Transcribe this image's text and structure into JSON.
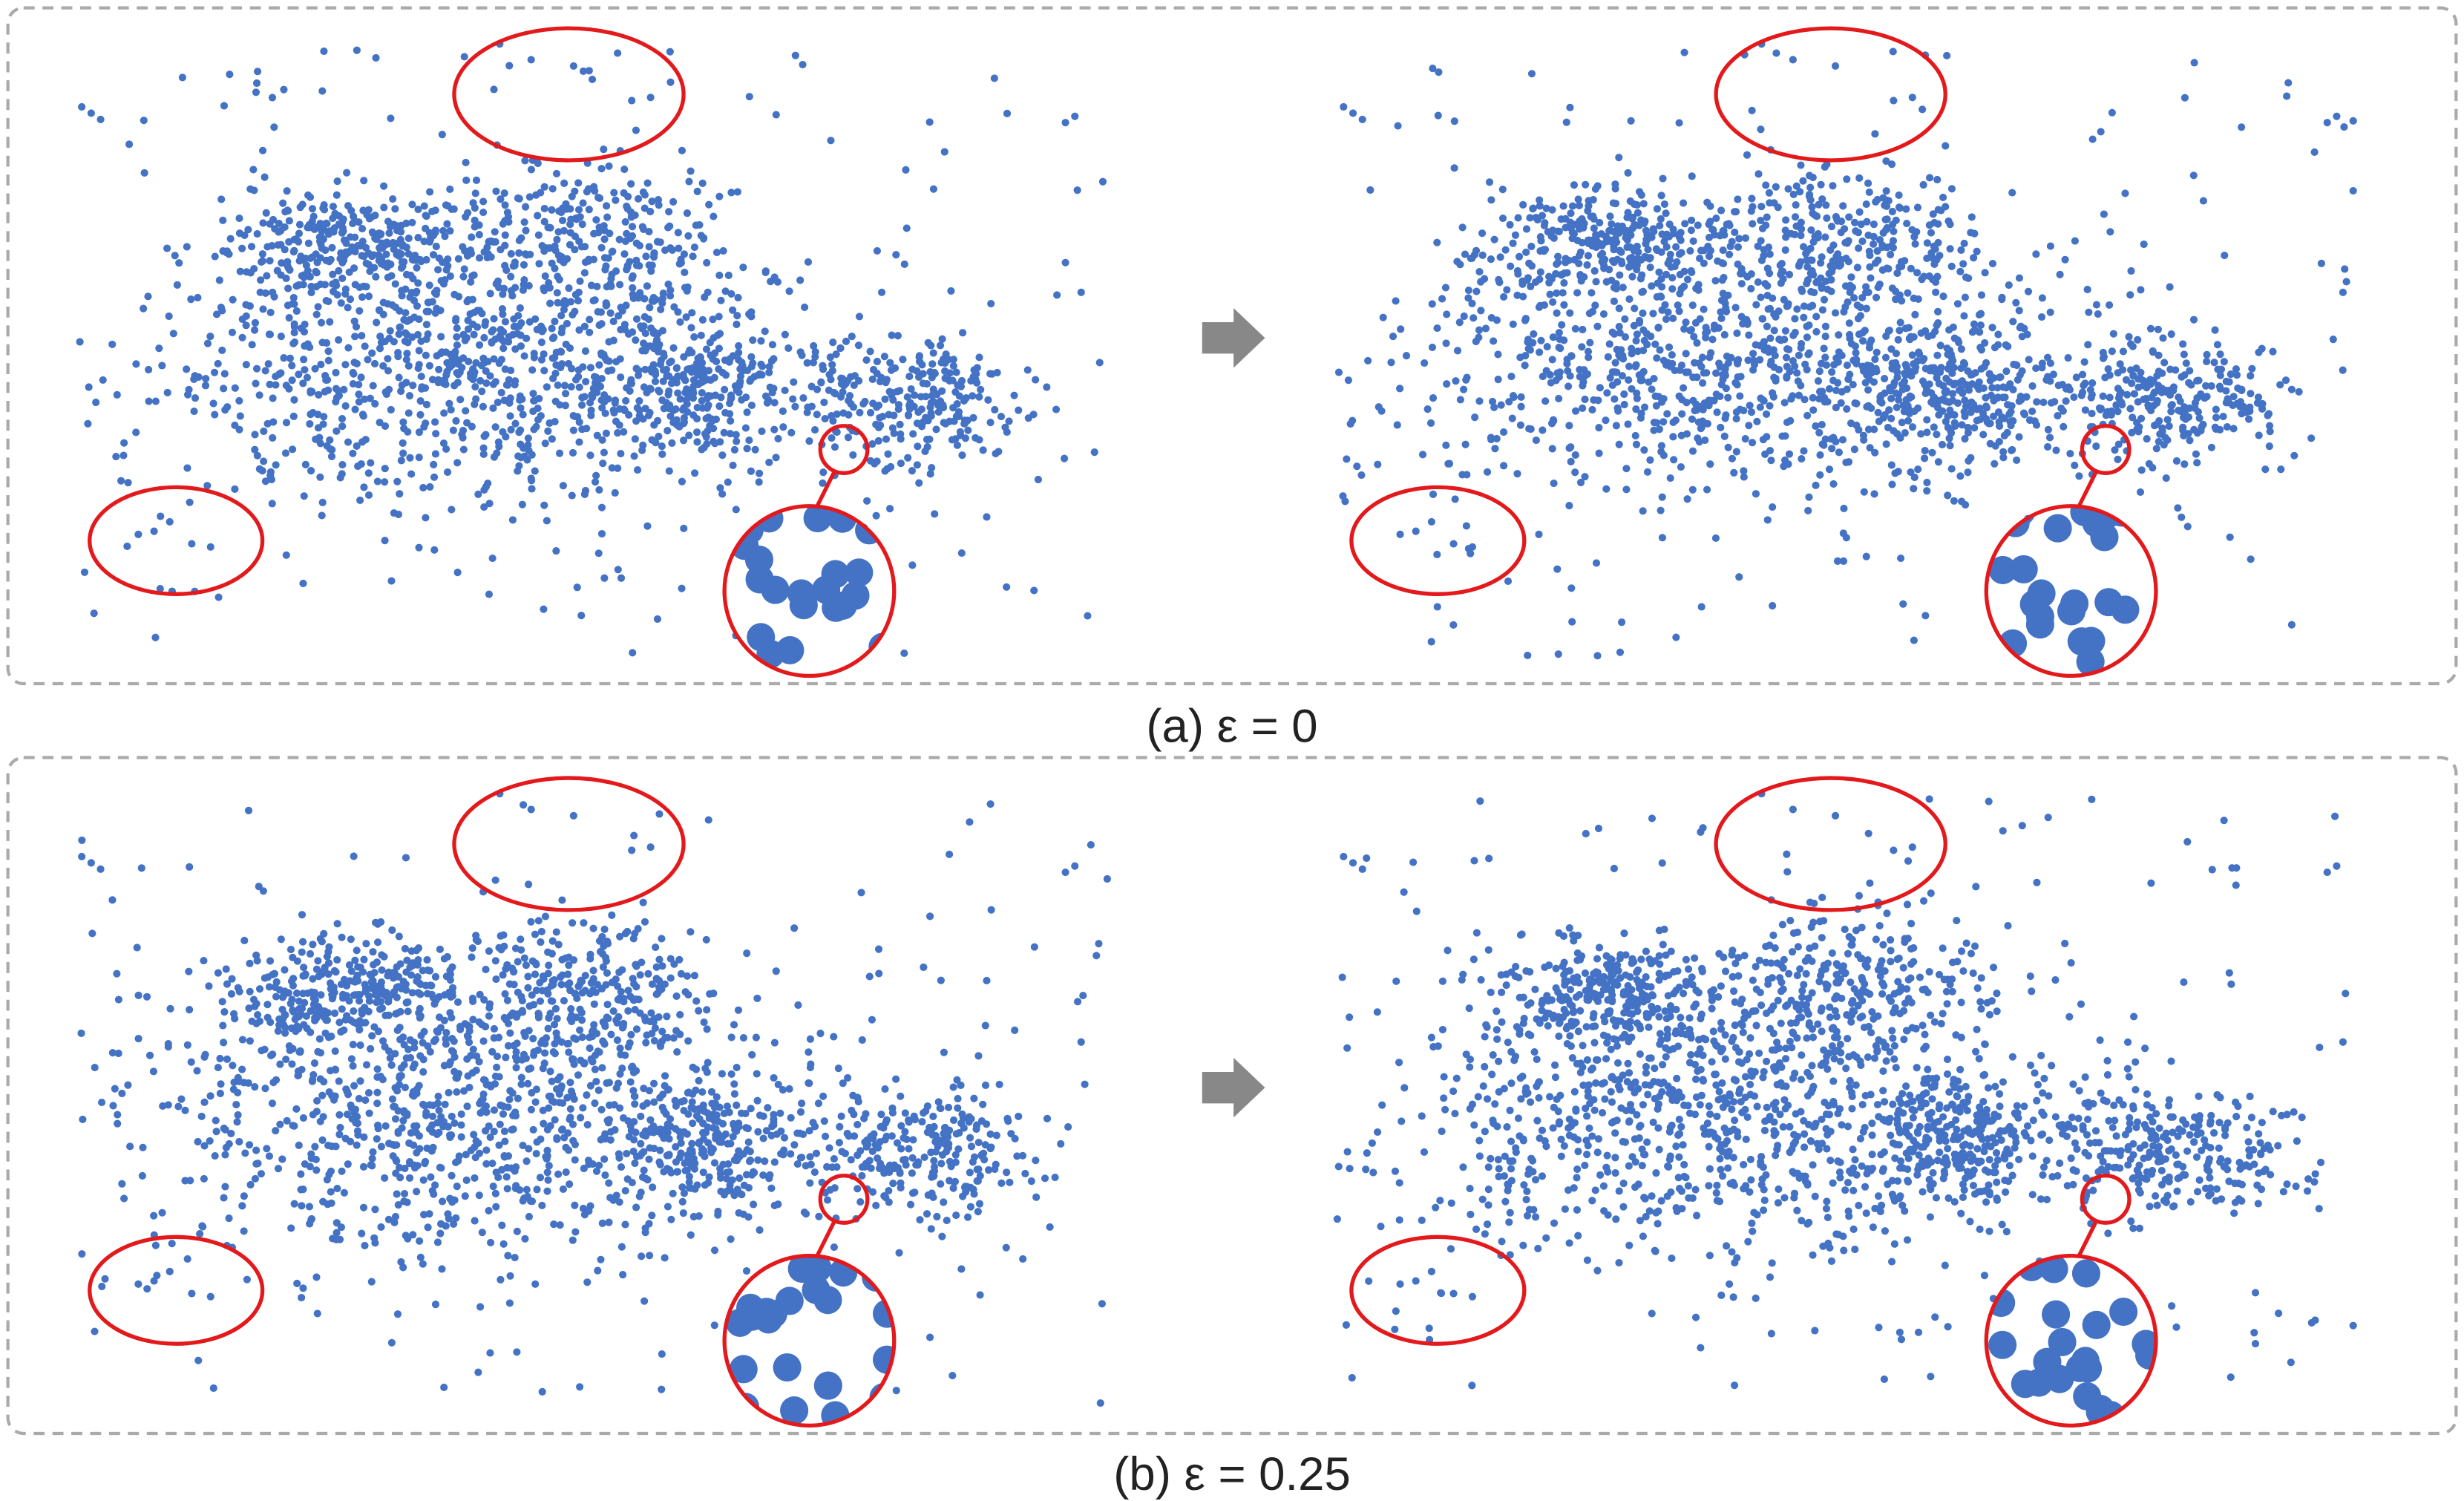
{
  "panels": [
    {
      "caption": "(a) ε = 0"
    },
    {
      "caption": "(b) ε = 0.25"
    }
  ]
}
